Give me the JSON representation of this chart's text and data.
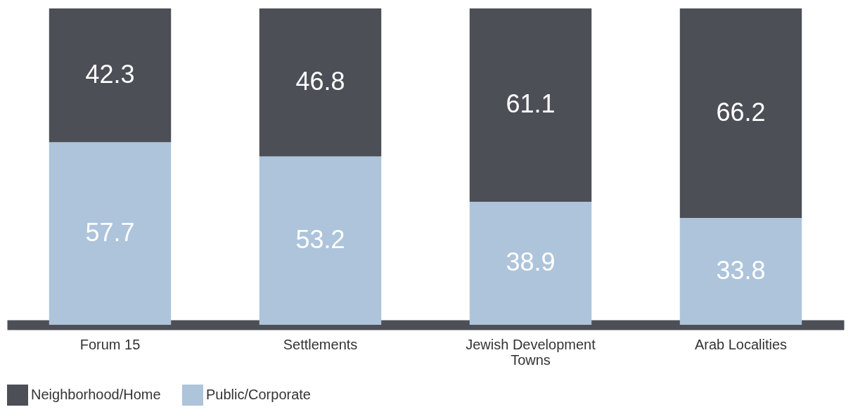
{
  "chart_data": {
    "type": "bar",
    "stacked": true,
    "data_labels": true,
    "legend": "bottom",
    "grid": false,
    "categories": [
      "Forum 15",
      "Settlements",
      "Jewish Development Towns",
      "Arab Localities"
    ],
    "series": [
      {
        "name": "Public/Corporate",
        "color": "#adc4db",
        "values": [
          57.7,
          53.2,
          38.9,
          33.8
        ]
      },
      {
        "name": "Neighborhood/Home",
        "color": "#4d4f57",
        "values": [
          42.3,
          46.8,
          61.1,
          66.2
        ]
      }
    ]
  }
}
